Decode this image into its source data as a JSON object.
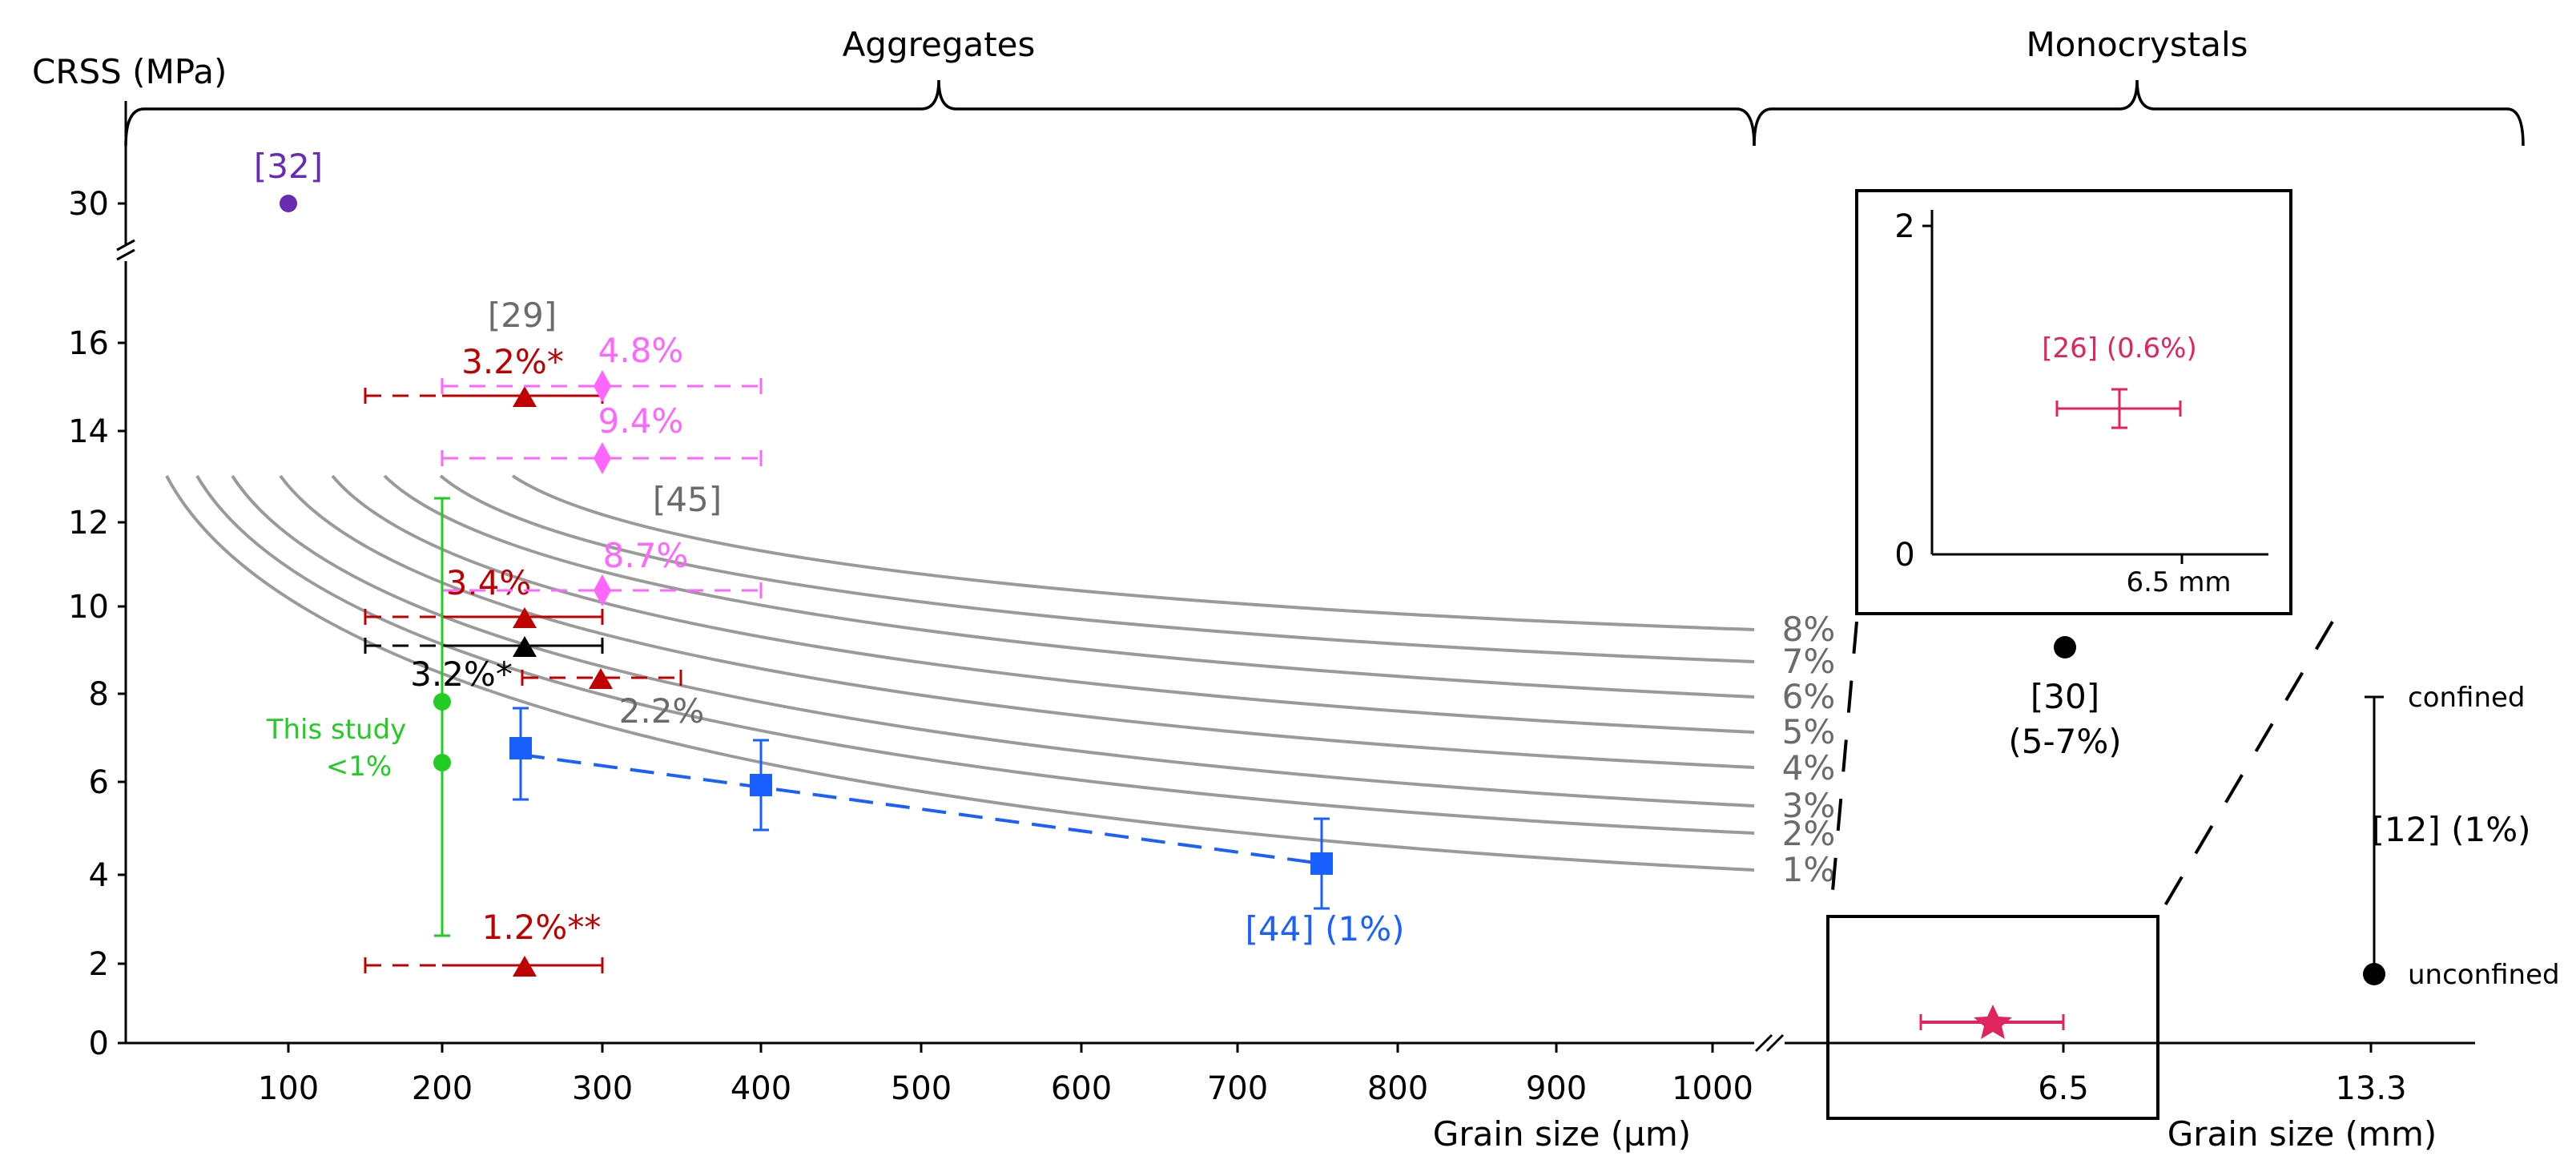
{
  "chart_data": {
    "type": "scatter",
    "title": "",
    "ylabel": "CRSS (MPa)",
    "panels": {
      "aggregates": {
        "label": "Aggregates",
        "xlabel": "Grain size (µm)",
        "xlim": [
          0,
          1010
        ],
        "xticks": [
          "100",
          "200",
          "300",
          "400",
          "500",
          "600",
          "700",
          "800",
          "900",
          "1000"
        ],
        "ylim_lower": [
          0,
          17.5
        ],
        "yticks_lower": [
          "0",
          "2",
          "4",
          "6",
          "8",
          "10",
          "12",
          "14",
          "16"
        ],
        "ytick_upper": "30"
      },
      "monocrystals": {
        "label": "Monocrystals",
        "xlabel": "Grain size (mm)",
        "xticks": [
          "6.5",
          "13.3"
        ]
      }
    },
    "curves": [
      {
        "label": "1%",
        "x0": 25,
        "y": [
          13.0,
          3.95
        ]
      },
      {
        "label": "2%",
        "x0": 45,
        "y": [
          13.0,
          4.55
        ]
      },
      {
        "label": "3%",
        "x0": 68,
        "y": [
          13.0,
          5.15
        ]
      },
      {
        "label": "4%",
        "x0": 98,
        "y": [
          13.0,
          5.95
        ]
      },
      {
        "label": "5%",
        "x0": 130,
        "y": [
          13.0,
          6.85
        ]
      },
      {
        "label": "6%",
        "x0": 163,
        "y": [
          13.0,
          7.65
        ]
      },
      {
        "label": "7%",
        "x0": 198,
        "y": [
          13.0,
          8.4
        ]
      },
      {
        "label": "8%",
        "x0": 238,
        "y": [
          13.0,
          9.35
        ]
      }
    ],
    "series": [
      {
        "name": "[32]",
        "color": "#6a2bb3",
        "marker": "circle",
        "points": [
          {
            "x": 100,
            "y": 30,
            "panel": "upper"
          }
        ]
      },
      {
        "name": "[29]",
        "color": "#c00000",
        "marker": "triangle",
        "points": [
          {
            "x": 250,
            "y": 14.8,
            "xerr_solid": [
              200,
              300
            ],
            "xerr_dashed": [
              150,
              200
            ],
            "label": "3.2%*"
          },
          {
            "x": 250,
            "y": 9.7,
            "xerr_solid": [
              200,
              300
            ],
            "xerr_dashed": [
              150,
              200
            ],
            "label": "3.4%"
          },
          {
            "x": 300,
            "y": 8.4,
            "xerr_solid": [
              250,
              350
            ],
            "xerr_dashed": [
              250,
              350
            ],
            "dashed_only": true,
            "label": "2.2%"
          },
          {
            "x": 250,
            "y": 1.8,
            "xerr_solid": [
              200,
              300
            ],
            "xerr_dashed": [
              150,
              200
            ],
            "label": "1.2%**"
          }
        ]
      },
      {
        "name": "black",
        "color": "#000000",
        "marker": "triangle",
        "points": [
          {
            "x": 250,
            "y": 9.1,
            "xerr_solid": [
              200,
              300
            ],
            "xerr_dashed": [
              150,
              200
            ],
            "label": "3.2%*"
          }
        ]
      },
      {
        "name": "[45]",
        "color": "#ff66ff",
        "marker": "diamond",
        "points": [
          {
            "x": 300,
            "y": 14.9,
            "xerr_dashed": [
              200,
              400
            ],
            "label": "4.8%"
          },
          {
            "x": 300,
            "y": 13.4,
            "xerr_dashed": [
              200,
              400
            ],
            "label": "9.4%"
          },
          {
            "x": 300,
            "y": 10.3,
            "xerr_dashed": [
              200,
              400
            ],
            "label": "8.7%"
          }
        ]
      },
      {
        "name": "This study",
        "note": "<1%",
        "color": "#22cc22",
        "marker": "circle",
        "points": [
          {
            "x": 200,
            "y": 7.9
          },
          {
            "x": 200,
            "y": 6.5
          }
        ],
        "yerr": [
          2.5,
          12.5
        ]
      },
      {
        "name": "[44] (1%)",
        "color": "#1a5fff",
        "marker": "square",
        "points": [
          {
            "x": 250,
            "y": 6.75,
            "yerr": [
              5.7,
              7.8
            ]
          },
          {
            "x": 400,
            "y": 6.0,
            "yerr": [
              5.0,
              7.0
            ]
          },
          {
            "x": 750,
            "y": 4.2,
            "yerr": [
              3.2,
              5.2
            ]
          }
        ]
      },
      {
        "name": "[30]",
        "note": "(5-7%)",
        "color": "#000000",
        "marker": "circle",
        "points": [
          {
            "x_mm": 6.5,
            "y": 9.1
          }
        ]
      },
      {
        "name": "[12] (1%)",
        "color": "#000000",
        "marker": "circle",
        "points": [
          {
            "x_mm": 13.3,
            "y": 1.6
          }
        ],
        "range": [
          1.6,
          8.0
        ]
      },
      {
        "name": "[26] (0.6%)",
        "color": "#e0245e",
        "marker": "star",
        "points": [
          {
            "x_mm": 6.5,
            "y": 0.85
          }
        ]
      }
    ],
    "annotations": {
      "curve_source": "[45]",
      "study_label": "This study",
      "study_sub": "<1%",
      "ref29": "[29]",
      "ref30_label": "[30]",
      "ref30_sub": "(5-7%)",
      "ref12_label": "[12] (1%)",
      "confined": "confined",
      "unconfined": "unconfined",
      "inset_label": "[26] (0.6%)",
      "inset_xtick": "6.5 mm",
      "inset_yticks": [
        "0",
        "2"
      ]
    }
  }
}
